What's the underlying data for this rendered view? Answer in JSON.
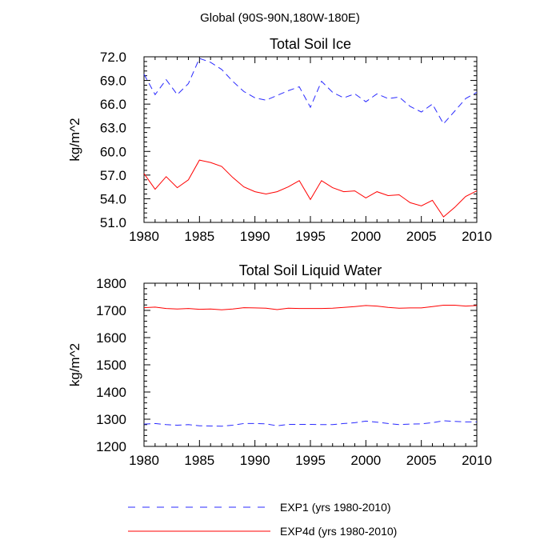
{
  "figure": {
    "suptitle": "Global (90S-90N,180W-180E)"
  },
  "legend": [
    {
      "label": "EXP1 (yrs 1980-2010)",
      "color": "#2a2aff",
      "dash": "dashed"
    },
    {
      "label": "EXP4d (yrs 1980-2010)",
      "color": "#ff0000",
      "dash": "solid"
    }
  ],
  "chart_data": [
    {
      "type": "line",
      "title": "Total Soil Ice",
      "xlabel": "",
      "ylabel": "kg/m^2",
      "xlim": [
        1980,
        2010
      ],
      "ylim": [
        51,
        72
      ],
      "xticks": [
        1980,
        1985,
        1990,
        1995,
        2000,
        2005,
        2010
      ],
      "yticks": [
        51.0,
        54.0,
        57.0,
        60.0,
        63.0,
        66.0,
        69.0,
        72.0
      ],
      "ytick_labels": [
        "51.0",
        "54.0",
        "57.0",
        "60.0",
        "63.0",
        "66.0",
        "69.0",
        "72.0"
      ],
      "x": [
        1980,
        1981,
        1982,
        1983,
        1984,
        1985,
        1986,
        1987,
        1988,
        1989,
        1990,
        1991,
        1992,
        1993,
        1994,
        1995,
        1996,
        1997,
        1998,
        1999,
        2000,
        2001,
        2002,
        2003,
        2004,
        2005,
        2006,
        2007,
        2008,
        2009,
        2010
      ],
      "series": [
        {
          "name": "EXP1 (yrs 1980-2010)",
          "color": "#2a2aff",
          "dash": "dashed",
          "values": [
            69.8,
            67.2,
            69.1,
            67.2,
            68.6,
            71.8,
            71.3,
            70.4,
            68.9,
            67.6,
            66.8,
            66.5,
            67.1,
            67.7,
            68.2,
            65.6,
            68.9,
            67.5,
            66.8,
            67.3,
            66.3,
            67.3,
            66.7,
            66.9,
            65.7,
            65.0,
            66.0,
            63.5,
            65.1,
            66.7,
            67.5
          ]
        },
        {
          "name": "EXP4d (yrs 1980-2010)",
          "color": "#ff0000",
          "dash": "solid",
          "values": [
            57.2,
            55.2,
            56.8,
            55.4,
            56.4,
            58.9,
            58.6,
            58.1,
            56.7,
            55.5,
            54.9,
            54.6,
            54.9,
            55.5,
            56.3,
            53.9,
            56.3,
            55.4,
            54.9,
            55.0,
            54.1,
            54.9,
            54.4,
            54.5,
            53.5,
            53.1,
            53.8,
            51.7,
            52.9,
            54.3,
            55.0
          ]
        }
      ]
    },
    {
      "type": "line",
      "title": "Total Soil Liquid Water",
      "xlabel": "",
      "ylabel": "kg/m^2",
      "xlim": [
        1980,
        2010
      ],
      "ylim": [
        1200,
        1800
      ],
      "xticks": [
        1980,
        1985,
        1990,
        1995,
        2000,
        2005,
        2010
      ],
      "yticks": [
        1200,
        1300,
        1400,
        1500,
        1600,
        1700,
        1800
      ],
      "ytick_labels": [
        "1200",
        "1300",
        "1400",
        "1500",
        "1600",
        "1700",
        "1800"
      ],
      "x": [
        1980,
        1981,
        1982,
        1983,
        1984,
        1985,
        1986,
        1987,
        1988,
        1989,
        1990,
        1991,
        1992,
        1993,
        1994,
        1995,
        1996,
        1997,
        1998,
        1999,
        2000,
        2001,
        2002,
        2003,
        2004,
        2005,
        2006,
        2007,
        2008,
        2009,
        2010
      ],
      "series": [
        {
          "name": "EXP1 (yrs 1980-2010)",
          "color": "#2a2aff",
          "dash": "dashed",
          "values": [
            1282,
            1284,
            1280,
            1278,
            1280,
            1276,
            1275,
            1274,
            1278,
            1284,
            1284,
            1283,
            1276,
            1281,
            1281,
            1281,
            1280,
            1280,
            1284,
            1287,
            1293,
            1289,
            1284,
            1280,
            1282,
            1283,
            1287,
            1294,
            1292,
            1290,
            1290
          ]
        },
        {
          "name": "EXP4d (yrs 1980-2010)",
          "color": "#ff0000",
          "dash": "solid",
          "values": [
            1710,
            1712,
            1707,
            1705,
            1707,
            1704,
            1705,
            1702,
            1705,
            1710,
            1709,
            1708,
            1703,
            1708,
            1707,
            1707,
            1707,
            1708,
            1711,
            1714,
            1718,
            1716,
            1711,
            1708,
            1709,
            1709,
            1714,
            1719,
            1719,
            1716,
            1718
          ]
        }
      ]
    }
  ]
}
